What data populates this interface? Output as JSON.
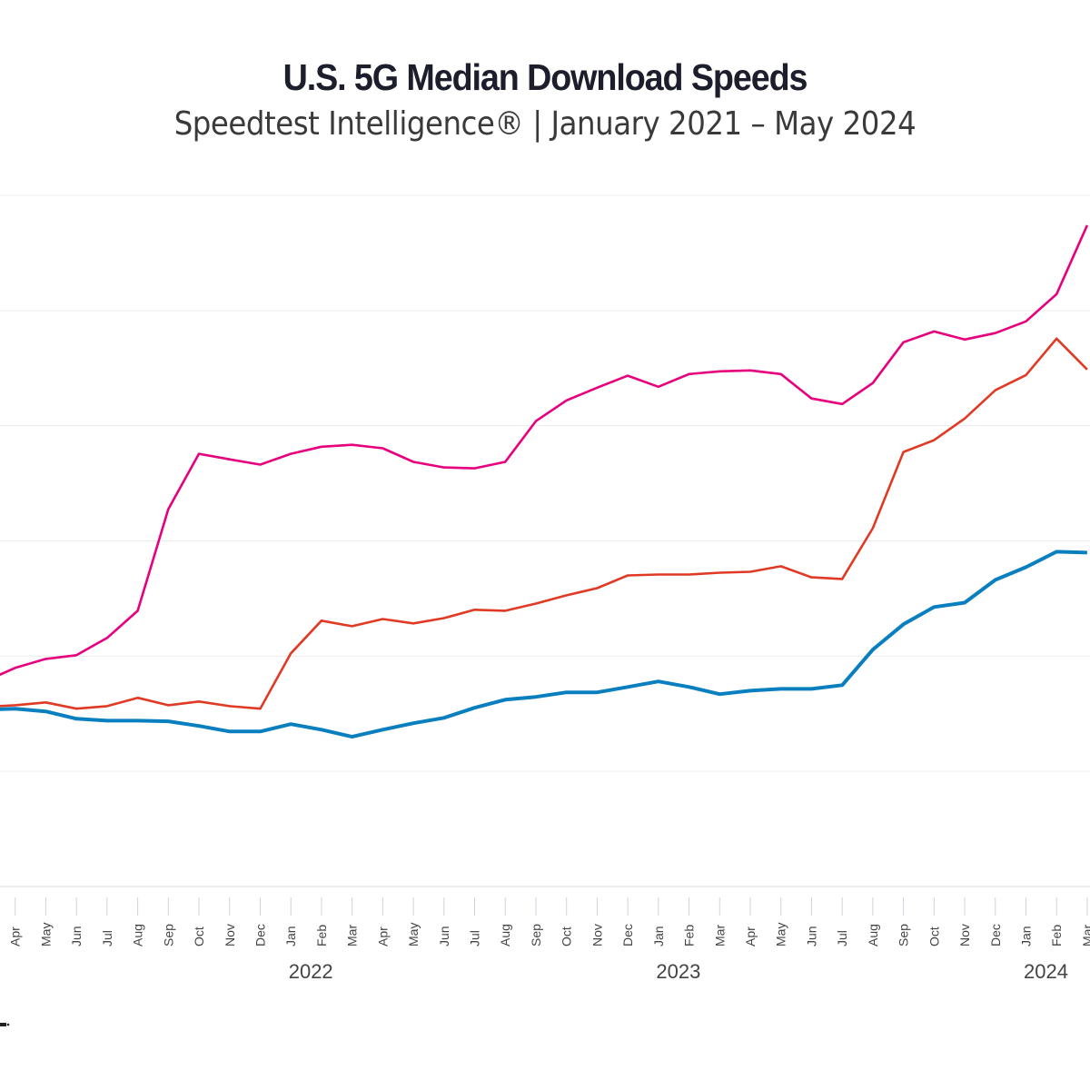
{
  "title": "U.S. 5G Median Download Speeds",
  "subtitle": "Speedtest Intelligence® | January 2021 – May 2024",
  "chart_data": {
    "type": "line",
    "title": "U.S. 5G Median Download Speeds",
    "subtitle": "Speedtest Intelligence® | January 2021 – May 2024",
    "xlabel": "",
    "ylabel": "",
    "ylim": [
      0,
      300
    ],
    "ygrid_step": 50,
    "grid": true,
    "x": [
      "2021-03",
      "2021-04",
      "2021-05",
      "2021-06",
      "2021-07",
      "2021-08",
      "2021-09",
      "2021-10",
      "2021-11",
      "2021-12",
      "2022-01",
      "2022-02",
      "2022-03",
      "2022-04",
      "2022-05",
      "2022-06",
      "2022-07",
      "2022-08",
      "2022-09",
      "2022-10",
      "2022-11",
      "2022-12",
      "2023-01",
      "2023-02",
      "2023-03",
      "2023-04",
      "2023-05",
      "2023-06",
      "2023-07",
      "2023-08",
      "2023-09",
      "2023-10",
      "2023-11",
      "2023-12",
      "2024-01",
      "2024-02",
      "2024-03"
    ],
    "tick_labels": [
      "Apr",
      "May",
      "Jun",
      "Jul",
      "Aug",
      "Sep",
      "Oct",
      "Nov",
      "Dec",
      "Jan",
      "Feb",
      "Mar",
      "Apr",
      "May",
      "Jun",
      "Jul",
      "Aug",
      "Sep",
      "Oct",
      "Nov",
      "Dec",
      "Jan",
      "Feb",
      "Mar",
      "Apr",
      "May",
      "Jun",
      "Jul",
      "Aug",
      "Sep",
      "Oct",
      "Nov",
      "Dec",
      "Jan",
      "Feb",
      "Mar"
    ],
    "year_labels": [
      "2022",
      "2023",
      "2024"
    ],
    "series": [
      {
        "color": "#e6007e",
        "values": [
          89,
          94.9,
          98.8,
          100.4,
          107.9,
          119.7,
          163.8,
          187.8,
          185.4,
          183.1,
          187.8,
          190.9,
          191.7,
          190.2,
          184.3,
          181.9,
          181.5,
          184.3,
          202,
          211,
          216.5,
          221.7,
          216.9,
          222.4,
          223.6,
          224,
          222.4,
          211.8,
          209.4,
          218.5,
          236.2,
          240.9,
          237.4,
          240.2,
          245.3,
          257.1,
          287
        ]
      },
      {
        "color": "#e03a25",
        "values": [
          78,
          78.7,
          79.9,
          77.2,
          78.3,
          81.9,
          78.7,
          80.3,
          78.3,
          77.2,
          101.2,
          115.4,
          113,
          116.1,
          114.2,
          116.5,
          120.1,
          119.7,
          122.8,
          126.4,
          129.5,
          135,
          135.4,
          135.4,
          136.2,
          136.6,
          139,
          134.2,
          133.5,
          155.5,
          188.6,
          193.7,
          203.1,
          215.4,
          222,
          237.8,
          224.4
        ]
      },
      {
        "color": "#0a7fc0",
        "values": [
          76.8,
          77.2,
          76,
          72.8,
          72,
          72,
          71.7,
          69.7,
          67.3,
          67.3,
          70.5,
          68.1,
          65,
          68.1,
          70.9,
          73.2,
          77.6,
          81.1,
          82.3,
          84.3,
          84.3,
          86.6,
          89,
          86.6,
          83.5,
          85,
          85.8,
          85.8,
          87.4,
          102.8,
          113.8,
          121.3,
          123.2,
          133.1,
          138.6,
          145.3,
          144.9
        ]
      }
    ]
  }
}
